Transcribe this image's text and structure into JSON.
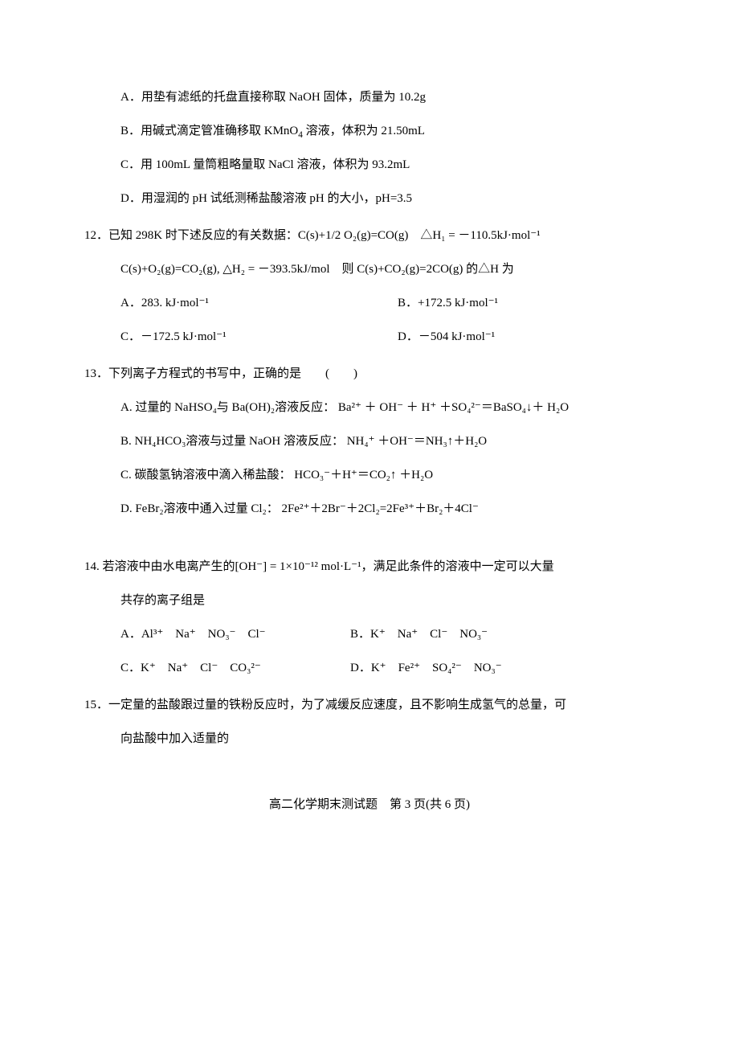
{
  "q11": {
    "optA": "A．用垫有滤纸的托盘直接称取 NaOH 固体，质量为 10.2g",
    "optB_pre": "B．用碱式滴定管准确移取 KMnO",
    "optB_sub": "4",
    "optB_post": " 溶液，体积为 21.50mL",
    "optC": "C．用 100mL 量筒粗略量取 NaCl 溶液，体积为 93.2mL",
    "optD": "D．用湿润的 pH 试纸测稀盐酸溶液 pH 的大小，pH=3.5"
  },
  "q12": {
    "line1": "12．已知 298K 时下述反应的有关数据：C(s)+1/2 O₂(g)=CO(g)　△H₁ = －110.5kJ·mol⁻¹",
    "line2": "C(s)+O₂(g)=CO₂(g), △H₂ = －393.5kJ/mol　则 C(s)+CO₂(g)=2CO(g) 的△H 为",
    "optA": "A．283. kJ·mol⁻¹",
    "optB": "B．+172.5 kJ·mol⁻¹",
    "optC": "C．－172.5 kJ·mol⁻¹",
    "optD": "D．－504 kJ·mol⁻¹"
  },
  "q13": {
    "stem": "13．下列离子方程式的书写中，正确的是　　(　　)",
    "optA": "A. 过量的 NaHSO₄与 Ba(OH)₂溶液反应： Ba²⁺ ＋ OH⁻ ＋ H⁺ ＋SO₄²⁻＝BaSO₄↓＋ H₂O",
    "optB": "B. NH₄HCO₃溶液与过量 NaOH 溶液反应： NH₄⁺ ＋OH⁻＝NH₃↑＋H₂O",
    "optC": "C. 碳酸氢钠溶液中滴入稀盐酸： HCO₃⁻＋H⁺＝CO₂↑ ＋H₂O",
    "optD": "D. FeBr₂溶液中通入过量 Cl₂： 2Fe²⁺＋2Br⁻＋2Cl₂=2Fe³⁺＋Br₂＋4Cl⁻"
  },
  "q14": {
    "stem1": "14. 若溶液中由水电离产生的[OH⁻] = 1×10⁻¹² mol·L⁻¹，满足此条件的溶液中一定可以大量",
    "stem2": "共存的离子组是",
    "optA": "A．Al³⁺　Na⁺　NO₃⁻　Cl⁻",
    "optB": "B．K⁺　Na⁺　Cl⁻　NO₃⁻",
    "optC": "C．K⁺　Na⁺　Cl⁻　CO₃²⁻",
    "optD": "D．K⁺　Fe²⁺　SO₄²⁻　NO₃⁻"
  },
  "q15": {
    "stem1": "15．一定量的盐酸跟过量的铁粉反应时，为了减缓反应速度，且不影响生成氢气的总量，可",
    "stem2": "向盐酸中加入适量的"
  },
  "footer": "高二化学期末测试题　第 3 页(共 6 页)"
}
